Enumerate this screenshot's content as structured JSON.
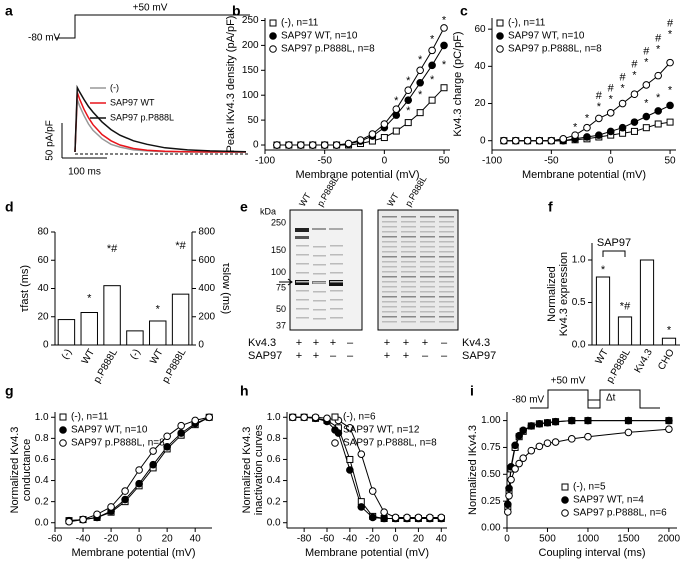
{
  "chart_data": [
    {
      "panel": "a",
      "type": "trace",
      "protocol_labels": [
        "+50 mV",
        "-80 mV"
      ],
      "x": [
        0,
        5,
        10,
        20,
        30,
        40,
        60,
        80,
        100,
        130,
        160,
        200,
        250,
        300,
        380
      ],
      "series": [
        {
          "name": "(-)",
          "color": "#999999",
          "values": [
            0,
            75,
            66,
            52,
            40,
            31,
            19,
            11,
            7,
            3,
            1.5,
            0.5,
            0,
            0,
            0
          ]
        },
        {
          "name": "SAP97 WT",
          "color": "#e8141b",
          "values": [
            0,
            85,
            76,
            61,
            49,
            39,
            25,
            16,
            10,
            5,
            2.5,
            1,
            0.3,
            0,
            0
          ]
        },
        {
          "name": "SAP97 p.P888L",
          "color": "#111111",
          "values": [
            0,
            92,
            86,
            75,
            65,
            57,
            43,
            32,
            24,
            16,
            11,
            6,
            3,
            1.5,
            0.5
          ]
        }
      ],
      "scale_bars": {
        "y": {
          "value": 50,
          "label": "50 pA/pF"
        },
        "x": {
          "value": 100,
          "label": "100 ms"
        }
      }
    },
    {
      "panel": "b",
      "type": "line",
      "xlabel": "Membrane potential (mV)",
      "ylabel": [
        "Peak IKv4.3 density (pA/pF)"
      ],
      "x": [
        -90,
        -80,
        -70,
        -60,
        -50,
        -40,
        -30,
        -20,
        -10,
        0,
        10,
        20,
        30,
        40,
        50
      ],
      "xlim": [
        -100,
        55
      ],
      "xticks": [
        -100,
        -50,
        0,
        50
      ],
      "ylim": [
        -10,
        255
      ],
      "yticks": [
        0,
        50,
        100,
        150,
        200,
        250
      ],
      "legend": "upper left",
      "series": [
        {
          "name": "(-), n=11",
          "color": "#000000",
          "marker": "square-open",
          "values": [
            0,
            0,
            0,
            0,
            0,
            0,
            0,
            3,
            8,
            15,
            28,
            45,
            65,
            90,
            115
          ]
        },
        {
          "name": "SAP97 WT, n=10",
          "color": "#000000",
          "marker": "circle",
          "values": [
            0,
            0,
            0,
            0,
            0,
            0,
            2,
            8,
            18,
            35,
            60,
            90,
            125,
            160,
            200
          ]
        },
        {
          "name": "SAP97 p.P888L, n=8",
          "color": "#000000",
          "marker": "circle-open",
          "values": [
            0,
            0,
            0,
            0,
            0,
            0,
            3,
            10,
            22,
            42,
            72,
            110,
            150,
            190,
            235
          ]
        }
      ],
      "annotations": [
        {
          "text": "*",
          "x": 10,
          "y": 88
        },
        {
          "text": "*",
          "x": 20,
          "y": 128
        },
        {
          "text": "*",
          "x": 30,
          "y": 170
        },
        {
          "text": "*",
          "x": 40,
          "y": 212
        },
        {
          "text": "*",
          "x": 50,
          "y": 250
        },
        {
          "text": "*",
          "x": 20,
          "y": 68
        },
        {
          "text": "*",
          "x": 30,
          "y": 100
        },
        {
          "text": "*",
          "x": 40,
          "y": 130
        },
        {
          "text": "*",
          "x": 50,
          "y": 160
        }
      ]
    },
    {
      "panel": "c",
      "type": "line",
      "xlabel": "Membrane potential (mV)",
      "ylabel": [
        "Kv4.3 charge (pC/pF)"
      ],
      "x": [
        -90,
        -80,
        -70,
        -60,
        -50,
        -40,
        -30,
        -20,
        -10,
        0,
        10,
        20,
        30,
        40,
        50
      ],
      "xlim": [
        -100,
        55
      ],
      "xticks": [
        -100,
        -50,
        0,
        50
      ],
      "ylim": [
        -5,
        66
      ],
      "yticks": [
        0,
        20,
        40,
        60
      ],
      "legend": "upper left",
      "series": [
        {
          "name": "(-), n=11",
          "color": "#000000",
          "marker": "square-open",
          "values": [
            0,
            0,
            0,
            0,
            0,
            0,
            0.5,
            1,
            2,
            3,
            4,
            5,
            7,
            9,
            10
          ]
        },
        {
          "name": "SAP97 WT, n=10",
          "color": "#000000",
          "marker": "circle",
          "values": [
            0,
            0,
            0,
            0,
            0,
            0,
            1,
            2,
            3,
            5,
            7,
            10,
            13,
            16,
            19
          ]
        },
        {
          "name": "SAP97 p.P888L, n=8",
          "color": "#000000",
          "marker": "circle-open",
          "values": [
            0,
            0,
            0,
            0,
            0,
            1,
            3,
            7,
            12,
            15,
            20,
            25,
            30,
            35,
            42
          ]
        }
      ],
      "annotations": [
        {
          "text": "*",
          "x": -30,
          "y": 7
        },
        {
          "text": "*",
          "x": -20,
          "y": 12
        },
        {
          "text": "#",
          "x": -10,
          "y": 24
        },
        {
          "text": "*",
          "x": -10,
          "y": 18
        },
        {
          "text": "#",
          "x": 0,
          "y": 28
        },
        {
          "text": "*",
          "x": 0,
          "y": 22
        },
        {
          "text": "#",
          "x": 10,
          "y": 34
        },
        {
          "text": "*",
          "x": 10,
          "y": 28
        },
        {
          "text": "#",
          "x": 20,
          "y": 41
        },
        {
          "text": "*",
          "x": 20,
          "y": 35
        },
        {
          "text": "#",
          "x": 30,
          "y": 48
        },
        {
          "text": "*",
          "x": 30,
          "y": 42
        },
        {
          "text": "#",
          "x": 40,
          "y": 55
        },
        {
          "text": "*",
          "x": 40,
          "y": 49
        },
        {
          "text": "#",
          "x": 50,
          "y": 63
        },
        {
          "text": "*",
          "x": 50,
          "y": 57
        },
        {
          "text": "*",
          "x": 30,
          "y": 20
        },
        {
          "text": "*",
          "x": 40,
          "y": 23
        },
        {
          "text": "*",
          "x": 50,
          "y": 27
        }
      ]
    },
    {
      "panel": "d",
      "type": "dotbar",
      "categories": [
        "(-)",
        "WT",
        "p.P888L",
        "(-)",
        "WT",
        "p.P888L"
      ],
      "ylabel": [
        "τfast (ms)"
      ],
      "y2label": [
        "τslow (ms)"
      ],
      "ylim": [
        0,
        80
      ],
      "yticks": [
        0,
        20,
        40,
        60,
        80
      ],
      "y2lim": [
        0,
        800
      ],
      "y2ticks": [
        0,
        200,
        400,
        600,
        800
      ],
      "series": [
        {
          "color": "#ffffff",
          "values": [
            18,
            23,
            42,
            null,
            null,
            null
          ]
        },
        {
          "color": "#ffffff",
          "axis": "y2",
          "values": [
            null,
            null,
            null,
            100,
            170,
            360
          ]
        }
      ],
      "annotations": [
        {
          "text": "*",
          "x": 1,
          "y": 33
        },
        {
          "text": "*#",
          "x": 2,
          "y": 68
        },
        {
          "text": "*",
          "x": 4,
          "y": 25
        },
        {
          "text": "*#",
          "x": 5,
          "y": 70
        }
      ]
    },
    {
      "panel": "e",
      "type": "blot",
      "kda_label": "kDa",
      "kda_ticks": [
        250,
        150,
        100,
        75,
        50,
        37
      ],
      "lane_labels": [
        "WT",
        "p.P888L"
      ],
      "rows": [
        {
          "name": "Kv4.3",
          "signs": [
            "+",
            "+",
            "+",
            "–"
          ]
        },
        {
          "name": "SAP97",
          "signs": [
            "+",
            "+",
            "–",
            "–"
          ]
        }
      ]
    },
    {
      "panel": "f",
      "type": "bar",
      "categories": [
        "WT",
        "p.P888L",
        "Kv4.3",
        "CHO"
      ],
      "values": [
        0.8,
        0.33,
        1.0,
        0.08
      ],
      "color": "#ffffff",
      "ylabel": [
        "Normalized",
        "Kv4.3 expression"
      ],
      "ylim": [
        0,
        1.2
      ],
      "yticks": [
        {
          "value": 0,
          "label": "0.0"
        },
        0.5,
        {
          "value": 1,
          "label": "1.0"
        }
      ],
      "bracket_label": "SAP97",
      "annotations": [
        {
          "text": "*",
          "x": 0,
          "y": 0.88
        },
        {
          "text": "*#",
          "x": 1,
          "y": 0.45
        },
        {
          "text": "*",
          "x": 3,
          "y": 0.17
        }
      ]
    },
    {
      "panel": "g",
      "type": "line",
      "xlabel": "Membrane potential (mV)",
      "ylabel": [
        "Normalized Kv4.3",
        "conductance"
      ],
      "x": [
        -50,
        -40,
        -30,
        -20,
        -10,
        0,
        10,
        20,
        30,
        40,
        50
      ],
      "xlim": [
        -60,
        52
      ],
      "xticks": [
        -60,
        -40,
        -20,
        0,
        20,
        40
      ],
      "ylim": [
        -0.05,
        1.05
      ],
      "yticks": [
        {
          "value": 0,
          "label": "0.0"
        },
        0.2,
        0.4,
        0.6,
        0.8,
        {
          "value": 1,
          "label": "1.0"
        }
      ],
      "legend": "upper left",
      "series": [
        {
          "name": "(-), n=11",
          "color": "#000000",
          "marker": "square-open",
          "values": [
            0.02,
            0.03,
            0.05,
            0.1,
            0.2,
            0.35,
            0.52,
            0.7,
            0.83,
            0.93,
            1
          ]
        },
        {
          "name": "SAP97 WT, n=10",
          "color": "#000000",
          "marker": "circle",
          "values": [
            0.02,
            0.03,
            0.05,
            0.11,
            0.22,
            0.37,
            0.55,
            0.72,
            0.85,
            0.94,
            1
          ]
        },
        {
          "name": "SAP97 p.P888L, n=8",
          "color": "#000000",
          "marker": "circle-open",
          "values": [
            0.01,
            0.03,
            0.08,
            0.15,
            0.3,
            0.5,
            0.68,
            0.82,
            0.92,
            0.97,
            1
          ]
        }
      ]
    },
    {
      "panel": "h",
      "type": "line",
      "xlabel": "Membrane potential (mV)",
      "ylabel": [
        "Normalized Kv4.3",
        "inactivation curves"
      ],
      "x": [
        -90,
        -80,
        -70,
        -60,
        -50,
        -40,
        -30,
        -20,
        -10,
        0,
        10,
        20,
        30,
        40
      ],
      "xlim": [
        -95,
        45
      ],
      "xticks": [
        -80,
        -60,
        -40,
        -20,
        0,
        20,
        40
      ],
      "ylim": [
        -0.05,
        1.05
      ],
      "yticks": [
        {
          "value": 0,
          "label": "0.0"
        },
        0.2,
        0.4,
        0.6,
        0.8,
        {
          "value": 1,
          "label": "1.0"
        }
      ],
      "legend": "upper right",
      "series": [
        {
          "name": "(-), n=6",
          "color": "#000000",
          "marker": "square-open",
          "values": [
            1,
            1,
            0.99,
            0.97,
            0.9,
            0.6,
            0.2,
            0.06,
            0.04,
            0.04,
            0.04,
            0.04,
            0.04,
            0.04
          ]
        },
        {
          "name": "SAP97 WT, n=12",
          "color": "#000000",
          "marker": "circle",
          "values": [
            1,
            1,
            0.99,
            0.96,
            0.85,
            0.5,
            0.15,
            0.05,
            0.04,
            0.04,
            0.04,
            0.04,
            0.04,
            0.04
          ]
        },
        {
          "name": "SAP97 p.P888L, n=8",
          "color": "#000000",
          "marker": "circle-open",
          "values": [
            1,
            1,
            1,
            0.99,
            0.97,
            0.9,
            0.65,
            0.3,
            0.1,
            0.05,
            0.05,
            0.05,
            0.05,
            0.05
          ]
        }
      ]
    },
    {
      "panel": "i",
      "type": "line",
      "xlabel": "Coupling interval (ms)",
      "ylabel": [
        "Normalized IKv4.3"
      ],
      "protocol_labels": [
        "+50 mV",
        "-80 mV",
        "Δt"
      ],
      "x": [
        10,
        25,
        50,
        100,
        150,
        200,
        300,
        400,
        500,
        600,
        800,
        1000,
        1500,
        2000
      ],
      "xlim": [
        0,
        2100
      ],
      "xticks": [
        0,
        500,
        1000,
        1500,
        2000
      ],
      "ylim": [
        0,
        1.08
      ],
      "yticks": [
        {
          "value": 0,
          "label": "0.00"
        },
        0.25,
        {
          "value": 0.5,
          "label": "0.50"
        },
        0.75,
        {
          "value": 1,
          "label": "1.00"
        }
      ],
      "legend": "lower right",
      "series": [
        {
          "name": "(-), n=5",
          "color": "#000000",
          "marker": "square-open",
          "values": [
            0.2,
            0.35,
            0.55,
            0.75,
            0.85,
            0.9,
            0.95,
            0.97,
            0.98,
            0.99,
            1,
            1,
            1,
            1
          ]
        },
        {
          "name": "SAP97 WT, n=4",
          "color": "#000000",
          "marker": "circle",
          "values": [
            0.22,
            0.37,
            0.57,
            0.77,
            0.86,
            0.91,
            0.95,
            0.97,
            0.98,
            0.99,
            1,
            1,
            1,
            1
          ]
        },
        {
          "name": "SAP97 p.P888L, n=6",
          "color": "#000000",
          "marker": "circle-open",
          "values": [
            0.15,
            0.3,
            0.45,
            0.55,
            0.6,
            0.65,
            0.72,
            0.76,
            0.79,
            0.8,
            0.83,
            0.85,
            0.89,
            0.92
          ]
        }
      ]
    }
  ]
}
